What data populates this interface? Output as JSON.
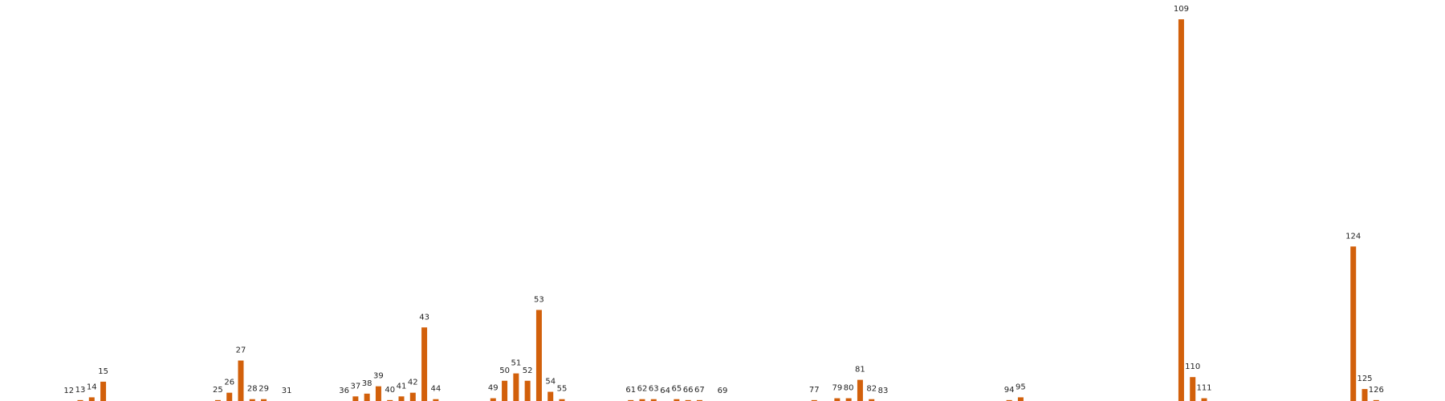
{
  "chart_data": {
    "type": "bar",
    "x": [
      12,
      13,
      14,
      15,
      25,
      26,
      27,
      28,
      29,
      31,
      36,
      37,
      38,
      39,
      40,
      41,
      42,
      43,
      44,
      49,
      50,
      51,
      52,
      53,
      54,
      55,
      61,
      62,
      63,
      64,
      65,
      66,
      67,
      69,
      77,
      79,
      80,
      81,
      82,
      83,
      94,
      95,
      109,
      110,
      111,
      124,
      125,
      126
    ],
    "values": [
      0,
      1,
      4,
      21,
      1,
      9,
      44,
      2,
      2,
      0,
      0,
      5,
      8,
      16,
      1,
      5,
      9,
      80,
      2,
      3,
      22,
      30,
      22,
      99,
      10,
      2,
      1,
      2,
      2,
      0,
      2,
      1,
      1,
      0,
      1,
      3,
      3,
      23,
      2,
      0,
      1,
      4,
      415,
      26,
      3,
      168,
      13,
      1
    ],
    "color": "#d2600b",
    "xlim": [
      6,
      132
    ],
    "ylim": [
      0,
      436
    ]
  }
}
